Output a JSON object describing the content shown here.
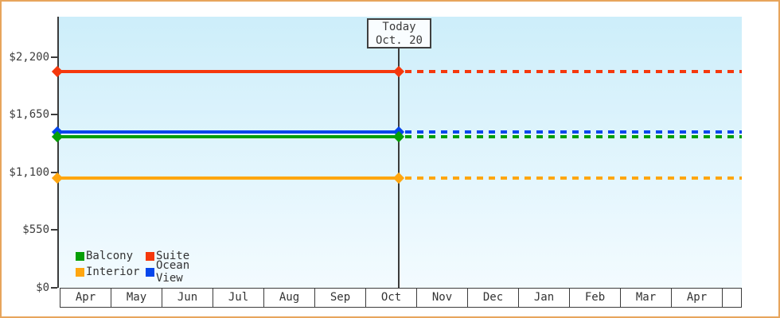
{
  "window": {
    "background": "#ffffff",
    "frame_border_color": "#e7a55c"
  },
  "plot": {
    "bg_gradient_top": "#cdeefa",
    "bg_gradient_bottom": "#f3fbff",
    "axis_color": "#3b3b3b",
    "grid": "off"
  },
  "chart_data": {
    "type": "line",
    "title": "",
    "description": "Cabin price lines: flat solid lines with diamond markers from Apr through today (Oct. 20), then dashed projection to the following Apr",
    "x_axis": {
      "tick_labels": [
        "Apr",
        "May",
        "Jun",
        "Jul",
        "Aug",
        "Sep",
        "Oct",
        "Nov",
        "Dec",
        "Jan",
        "Feb",
        "Mar",
        "Apr"
      ]
    },
    "y_axis": {
      "tick_labels": [
        "$0",
        "$550",
        "$1,100",
        "$1,650",
        "$2,200"
      ],
      "tick_values": [
        0,
        550,
        1100,
        1650,
        2200
      ],
      "range": [
        0,
        2350
      ]
    },
    "today_marker": {
      "label_line1": "Today",
      "label_line2": "Oct. 20",
      "month_index": 6,
      "day_fraction": 0.645
    },
    "series": [
      {
        "name": "Suite",
        "color": "#f5380c",
        "value": 2060
      },
      {
        "name": "Ocean View",
        "color": "#0546ec",
        "value": 1485
      },
      {
        "name": "Balcony",
        "color": "#069f06",
        "value": 1440
      },
      {
        "name": "Interior",
        "color": "#ffa60f",
        "value": 1045
      }
    ],
    "legend": {
      "position": "bottom-left",
      "rows": [
        [
          "Balcony",
          "Suite"
        ],
        [
          "Interior",
          "Ocean View"
        ]
      ]
    },
    "line_style": {
      "before_today": "solid",
      "after_today": "dashed",
      "marker": "diamond"
    }
  }
}
